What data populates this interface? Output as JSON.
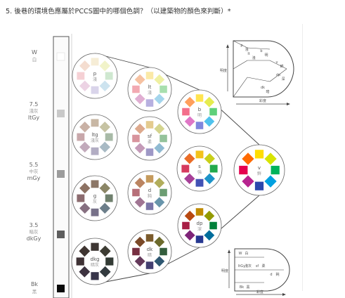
{
  "question": "5. 後巷的環境色應屬於PCCS圖中的哪個色調？（以建築物的顏色來判斷）*",
  "gray_scale": [
    {
      "code": "W",
      "cn": "白",
      "swatch": "#ffffff"
    },
    {
      "code": "7.5",
      "cn": "淺灰",
      "code2": "ltGy",
      "swatch": "#c9c9c9"
    },
    {
      "code": "5.5",
      "cn": "中灰",
      "code2": "mGy",
      "swatch": "#9c9c9c"
    },
    {
      "code": "3.5",
      "cn": "暗灰",
      "code2": "dkGy",
      "swatch": "#5e5e5e"
    },
    {
      "code": "Bk",
      "cn": "黑",
      "swatch": "#0a0a0a"
    }
  ],
  "tones": [
    {
      "code": "p",
      "cn": "淺",
      "colors": [
        "#f6edd6",
        "#f1f3c9",
        "#cfe8d0",
        "#cde3ef",
        "#d9d4ea",
        "#ecd3e4",
        "#f5d0d4",
        "#f4ddd0"
      ]
    },
    {
      "code": "ltg",
      "cn": "淺灰",
      "colors": [
        "#c8b7a4",
        "#c6c3a3",
        "#a8baa7",
        "#a8bac4",
        "#b2adc3",
        "#c2aabb",
        "#c8a7aa",
        "#c9b1a5"
      ]
    },
    {
      "code": "g",
      "cn": "灰",
      "colors": [
        "#8c7767",
        "#8b8666",
        "#6f806d",
        "#6c7e8a",
        "#777189",
        "#866f80",
        "#8c6b6f",
        "#8d7263"
      ]
    },
    {
      "code": "dkg",
      "cn": "暗灰",
      "colors": [
        "#3e3633",
        "#3d3c33",
        "#333b35",
        "#333a3f",
        "#37354a",
        "#3d3340",
        "#3f3235",
        "#3f3531"
      ]
    },
    {
      "code": "lt",
      "cn": "淺",
      "colors": [
        "#fbe9a6",
        "#eff0a2",
        "#a8dfae",
        "#a4d5ec",
        "#b7b0e0",
        "#e0aed2",
        "#f2a9b2",
        "#f6c2a2"
      ]
    },
    {
      "code": "sf",
      "cn": "柔",
      "colors": [
        "#e4cb8e",
        "#d4d48e",
        "#94c29b",
        "#8fbad2",
        "#9e98c6",
        "#c49ab8",
        "#d8949d",
        "#dda98d"
      ]
    },
    {
      "code": "d",
      "cn": "鈍",
      "colors": [
        "#c59a5c",
        "#b1ad5b",
        "#6c9d72",
        "#6895ab",
        "#7a75a7",
        "#a07593",
        "#b76f79",
        "#bb8461"
      ]
    },
    {
      "code": "dk",
      "cn": "暗",
      "colors": [
        "#7b5b2c",
        "#6c6a2c",
        "#335e3d",
        "#2e5771",
        "#433e70",
        "#64395a",
        "#762f41",
        "#7a4928"
      ]
    },
    {
      "code": "b",
      "cn": "明",
      "colors": [
        "#ffe450",
        "#e5ec4f",
        "#5fd07a",
        "#4fc2ed",
        "#7f86dd",
        "#df77c6",
        "#f36f8c",
        "#ff9f5c"
      ]
    },
    {
      "code": "s",
      "cn": "強",
      "colors": [
        "#f3c21b",
        "#c8cf19",
        "#22a94c",
        "#1d93c8",
        "#4252b5",
        "#a73f98",
        "#d63a5e",
        "#ea6c26"
      ]
    },
    {
      "code": "dp",
      "cn": "深",
      "colors": [
        "#bf8b00",
        "#939a00",
        "#00803a",
        "#006d9c",
        "#253790",
        "#7e2478",
        "#a81e45",
        "#b84911"
      ]
    },
    {
      "code": "v",
      "cn": "鮮",
      "colors": [
        "#ffdd00",
        "#d7e400",
        "#00b35a",
        "#00a0e0",
        "#2c47ad",
        "#b7248f",
        "#e5004f",
        "#ff6a00"
      ]
    }
  ],
  "legend_top": {
    "items": [
      {
        "code": "p",
        "cn": "淺"
      },
      {
        "code": "lt",
        "cn": "淺"
      },
      {
        "code": "b",
        "cn": "明"
      },
      {
        "code": "v",
        "cn": "鮮"
      },
      {
        "code": "dp",
        "cn": "深"
      },
      {
        "code": "dk",
        "cn": "暗"
      }
    ],
    "axis_v": "明度",
    "axis_h": "彩度"
  },
  "legend_bottom": {
    "items": [
      {
        "code": "W",
        "cn": "白"
      },
      {
        "code": "ltGy",
        "cn": "淺灰"
      },
      {
        "code": "sf",
        "cn": "柔"
      },
      {
        "code": "d",
        "cn": "鈍"
      },
      {
        "code": "Bk",
        "cn": "黑"
      }
    ],
    "axis_v": "明度",
    "axis_h": "彩度"
  }
}
